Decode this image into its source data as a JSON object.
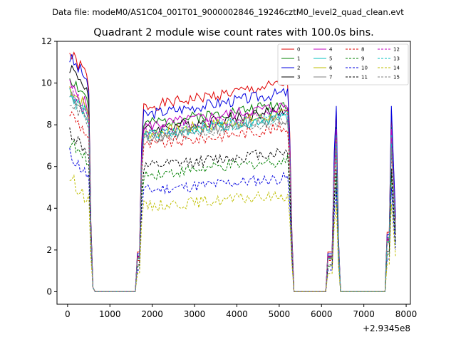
{
  "chart_data": {
    "type": "line",
    "suptitle": "Data file: modeM0/AS1C04_001T01_9000002846_19246cztM0_level2_quad_clean.evt",
    "title": "Quadrant 2 module wise count rates with 100.0s bins.",
    "xlabel": "",
    "ylabel": "",
    "x_offset_label": "+2.9345e8",
    "xlim": [
      -250,
      8100
    ],
    "ylim": [
      -0.6,
      12.0
    ],
    "x_ticks": [
      0,
      1000,
      2000,
      3000,
      4000,
      5000,
      6000,
      7000,
      8000
    ],
    "x_tick_labels": [
      "0",
      "1000",
      "2000",
      "3000",
      "4000",
      "5000",
      "6000",
      "7000",
      "8000"
    ],
    "y_ticks": [
      0,
      2,
      4,
      6,
      8,
      10,
      12
    ],
    "y_tick_labels": [
      "0",
      "2",
      "4",
      "6",
      "8",
      "10",
      "12"
    ],
    "legend_position": "top-right",
    "legend_columns": 4,
    "segments": [
      [
        50,
        650
      ],
      [
        1650,
        5350
      ],
      [
        6150,
        6450
      ],
      [
        7550,
        7750
      ]
    ],
    "series": [
      {
        "name": "0",
        "color": "#e00000",
        "dashed": false,
        "level": 9.5,
        "peak1": 11.4,
        "spike": 8.7,
        "seed": 1
      },
      {
        "name": "1",
        "color": "#008000",
        "dashed": false,
        "level": 8.6,
        "peak1": 10.3,
        "spike": 7.9,
        "seed": 2
      },
      {
        "name": "2",
        "color": "#0000e0",
        "dashed": false,
        "level": 9.1,
        "peak1": 11.2,
        "spike": 8.9,
        "seed": 3
      },
      {
        "name": "3",
        "color": "#000000",
        "dashed": false,
        "level": 8.3,
        "peak1": 10.8,
        "spike": 7.6,
        "seed": 4
      },
      {
        "name": "4",
        "color": "#c000c0",
        "dashed": false,
        "level": 8.5,
        "peak1": 9.9,
        "spike": 7.8,
        "seed": 5
      },
      {
        "name": "5",
        "color": "#00bfbf",
        "dashed": false,
        "level": 8.0,
        "peak1": 9.6,
        "spike": 7.5,
        "seed": 6
      },
      {
        "name": "6",
        "color": "#bfbf00",
        "dashed": false,
        "level": 8.1,
        "peak1": 9.8,
        "spike": 7.4,
        "seed": 7
      },
      {
        "name": "7",
        "color": "#808080",
        "dashed": false,
        "level": 7.9,
        "peak1": 9.4,
        "spike": 7.2,
        "seed": 8
      },
      {
        "name": "8",
        "color": "#e00000",
        "dashed": true,
        "level": 7.5,
        "peak1": 8.6,
        "spike": 6.8,
        "seed": 9
      },
      {
        "name": "9",
        "color": "#008000",
        "dashed": true,
        "level": 6.0,
        "peak1": 7.2,
        "spike": 5.6,
        "seed": 10
      },
      {
        "name": "10",
        "color": "#0000e0",
        "dashed": true,
        "level": 5.2,
        "peak1": 6.6,
        "spike": 5.0,
        "seed": 11
      },
      {
        "name": "11",
        "color": "#000000",
        "dashed": true,
        "level": 6.4,
        "peak1": 7.7,
        "spike": 5.9,
        "seed": 12
      },
      {
        "name": "12",
        "color": "#c000c0",
        "dashed": true,
        "level": 8.2,
        "peak1": 9.7,
        "spike": 7.4,
        "seed": 13
      },
      {
        "name": "13",
        "color": "#00bfbf",
        "dashed": true,
        "level": 8.0,
        "peak1": 9.4,
        "spike": 7.1,
        "seed": 14
      },
      {
        "name": "14",
        "color": "#bfbf00",
        "dashed": true,
        "level": 4.4,
        "peak1": 5.5,
        "spike": 4.2,
        "seed": 15
      },
      {
        "name": "15",
        "color": "#808080",
        "dashed": true,
        "level": 7.8,
        "peak1": 9.2,
        "spike": 6.9,
        "seed": 16
      }
    ]
  }
}
